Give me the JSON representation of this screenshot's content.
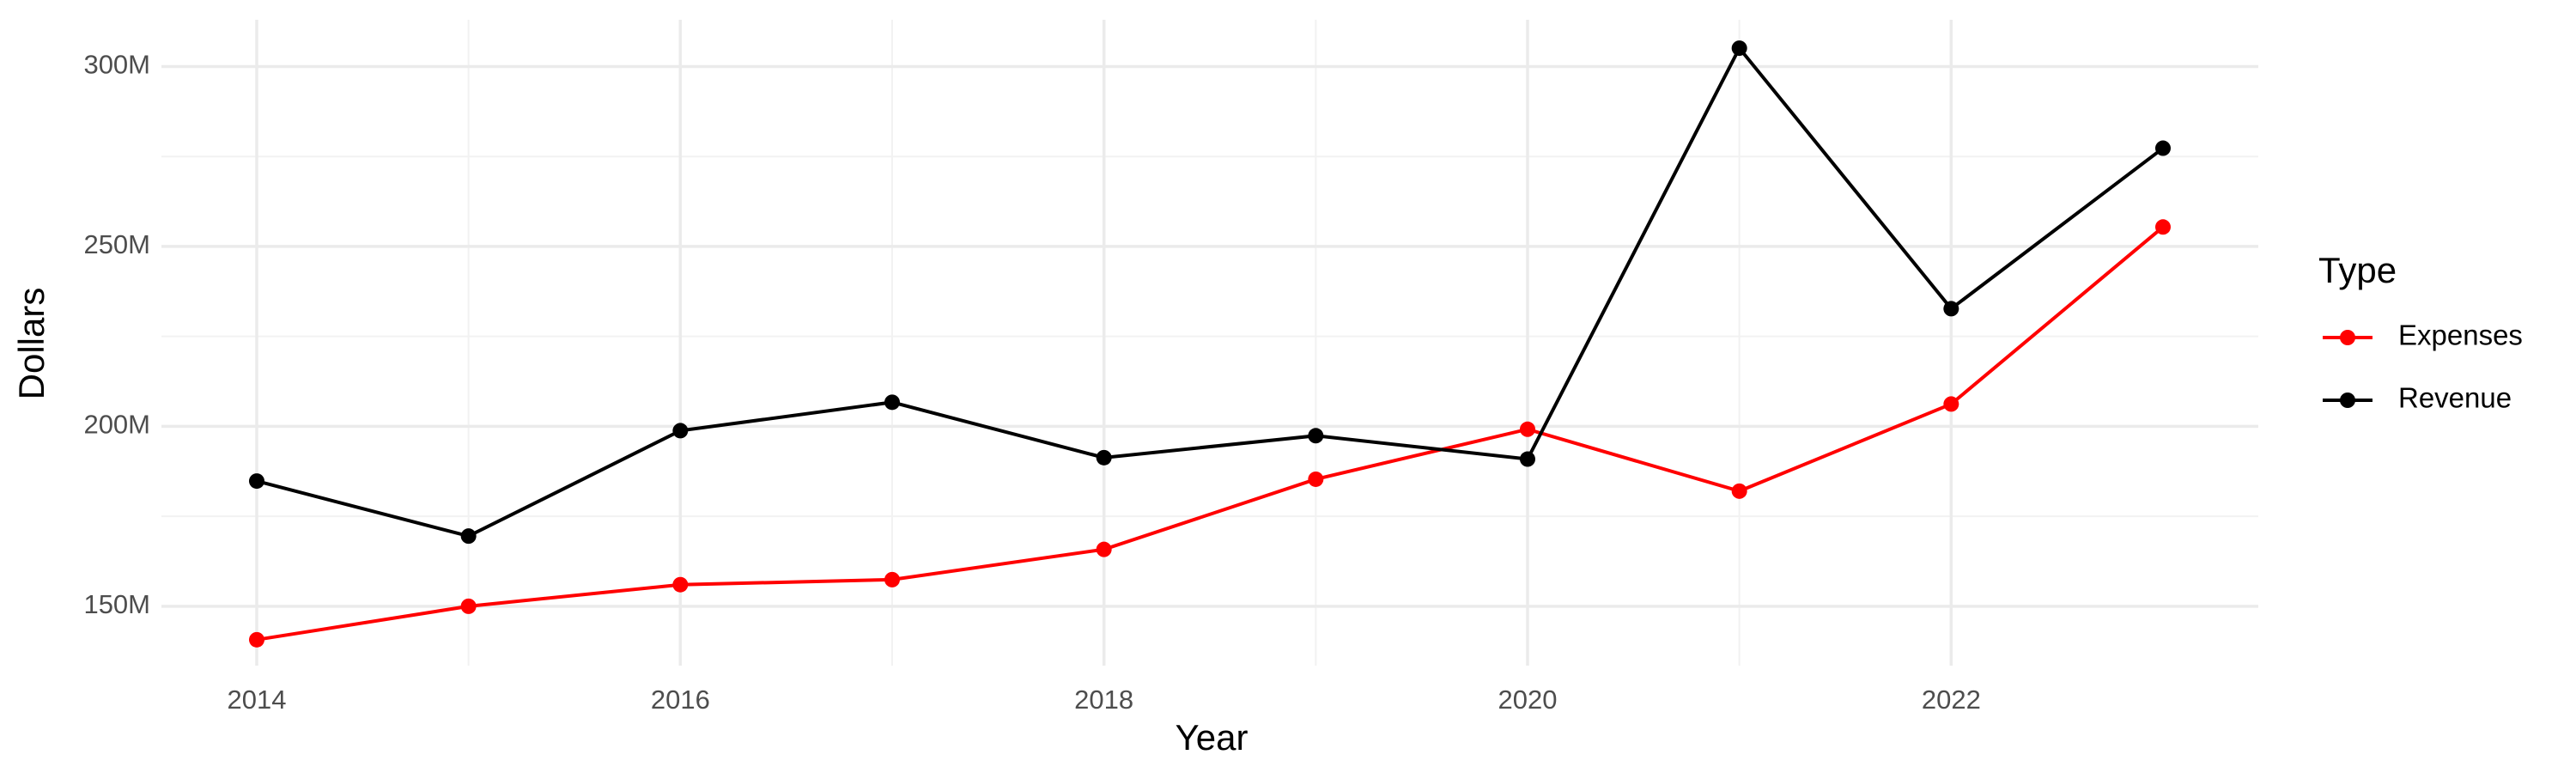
{
  "chart_data": {
    "type": "line",
    "x_label": "Year",
    "y_label": "Dollars",
    "x": [
      2014,
      2015,
      2016,
      2017,
      2018,
      2019,
      2020,
      2021,
      2022,
      2023
    ],
    "series": [
      {
        "name": "Expenses",
        "color": "#ff0000",
        "values": [
          140700000,
          150000000,
          156000000,
          157400000,
          165800000,
          185300000,
          199200000,
          182000000,
          206200000,
          255400000
        ]
      },
      {
        "name": "Revenue",
        "color": "#000000",
        "values": [
          184800000,
          169500000,
          198800000,
          206700000,
          191300000,
          197400000,
          190900000,
          305100000,
          232700000,
          277300000
        ]
      }
    ],
    "xlim": [
      2013.55,
      2023.45
    ],
    "xticks": [
      2014,
      2016,
      2018,
      2020,
      2022
    ],
    "ylim": [
      133500000,
      313000000
    ],
    "yticks": [
      {
        "value": 150000000,
        "label": "150M"
      },
      {
        "value": 200000000,
        "label": "200M"
      },
      {
        "value": 250000000,
        "label": "250M"
      },
      {
        "value": 300000000,
        "label": "300M"
      }
    ],
    "grid": true,
    "legend": "right",
    "legend_title": "Type"
  }
}
